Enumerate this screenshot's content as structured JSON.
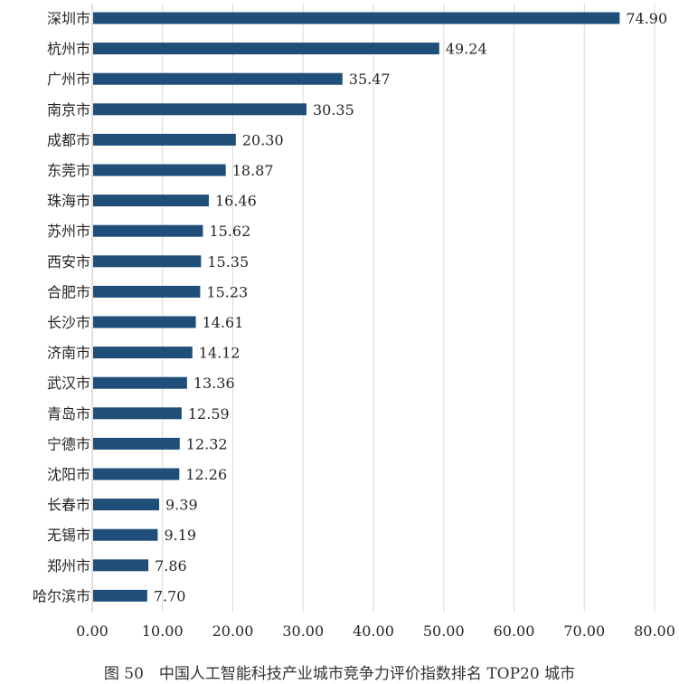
{
  "caption": "图 50　中国人工智能科技产业城市竞争力评价指数排名 TOP20 城市",
  "colors": {
    "bar": "#1f4e79",
    "grid": "#d9d9d9",
    "axis": "#bfbfbf",
    "text": "#262626"
  },
  "chart_data": {
    "type": "bar",
    "orientation": "horizontal",
    "categories": [
      "深圳市",
      "杭州市",
      "广州市",
      "南京市",
      "成都市",
      "东莞市",
      "珠海市",
      "苏州市",
      "西安市",
      "合肥市",
      "长沙市",
      "济南市",
      "武汉市",
      "青岛市",
      "宁德市",
      "沈阳市",
      "长春市",
      "无锡市",
      "郑州市",
      "哈尔滨市"
    ],
    "values": [
      74.9,
      49.24,
      35.47,
      30.35,
      20.3,
      18.87,
      16.46,
      15.62,
      15.35,
      15.23,
      14.61,
      14.12,
      13.36,
      12.59,
      12.32,
      12.26,
      9.39,
      9.19,
      7.86,
      7.7
    ],
    "value_labels": [
      "74.90",
      "49.24",
      "35.47",
      "30.35",
      "20.30",
      "18.87",
      "16.46",
      "15.62",
      "15.35",
      "15.23",
      "14.61",
      "14.12",
      "13.36",
      "12.59",
      "12.32",
      "12.26",
      "9.39",
      "9.19",
      "7.86",
      "7.70"
    ],
    "xlim": [
      0,
      80
    ],
    "xticks": [
      "0.00",
      "10.00",
      "20.00",
      "30.00",
      "40.00",
      "50.00",
      "60.00",
      "70.00",
      "80.00"
    ],
    "grid": true,
    "legend": "none"
  }
}
